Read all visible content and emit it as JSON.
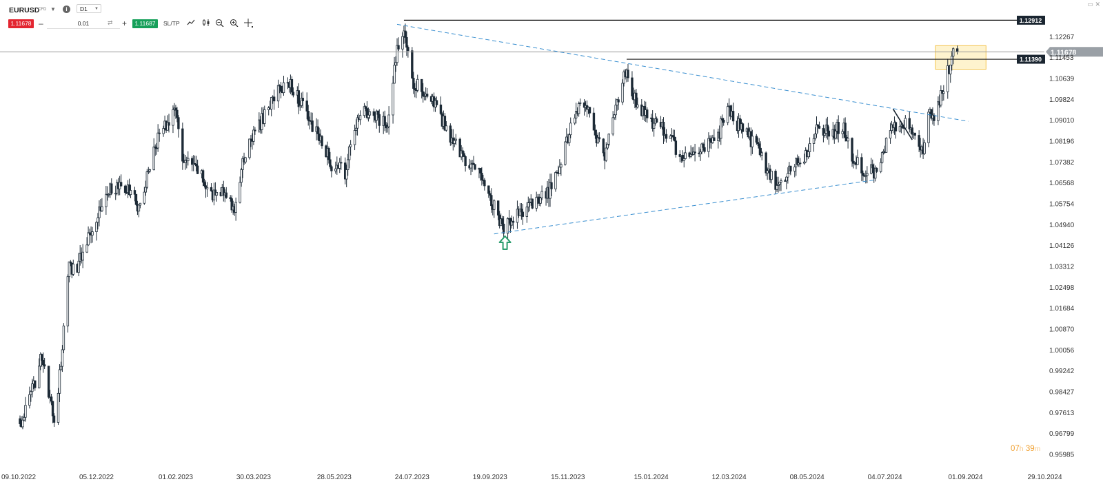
{
  "header": {
    "symbol": "EURUSD",
    "symbol_type": "CFD",
    "timeframe": "D1",
    "sell_price": "1.11678",
    "buy_price": "1.11687",
    "volume": "0.01",
    "sltp_label": "SL/TP",
    "icons": {
      "symbol_dropdown": "chevron-down-icon",
      "info": "info-icon",
      "swap": "swap-icon",
      "chart_type": "line-chart-icon",
      "indicators": "candlestick-icon",
      "zoom_out": "zoom-out-icon",
      "zoom_in": "zoom-in-icon",
      "crosshair": "crosshair-move-icon",
      "window": "window-icon",
      "close": "close-icon"
    }
  },
  "countdown": {
    "hours": "07",
    "hours_unit": "h",
    "minutes": "39",
    "minutes_unit": "m"
  },
  "chart_data": {
    "type": "candlestick",
    "symbol": "EURUSD",
    "timeframe": "D1",
    "x_tick_labels": [
      "09.10.2022",
      "05.12.2022",
      "01.02.2023",
      "30.03.2023",
      "28.05.2023",
      "24.07.2023",
      "19.09.2023",
      "15.11.2023",
      "15.01.2024",
      "12.03.2024",
      "08.05.2024",
      "04.07.2024",
      "01.09.2024",
      "29.10.2024"
    ],
    "y_tick_labels": [
      "1.12267",
      "1.11453",
      "1.10639",
      "1.09824",
      "1.09010",
      "1.08196",
      "1.07382",
      "1.06568",
      "1.05754",
      "1.04940",
      "1.04126",
      "1.03312",
      "1.02498",
      "1.01684",
      "1.00870",
      "1.00056",
      "0.99242",
      "0.98427",
      "0.97613",
      "0.96799",
      "0.95985"
    ],
    "ylim": [
      0.9585,
      1.1327
    ],
    "current_price": 1.11678,
    "current_price_label": "1.11678",
    "horizontal_levels": [
      {
        "value": 1.12912,
        "label": "1.12912",
        "from": "18.07.2023"
      },
      {
        "value": 1.1139,
        "label": "1.11390",
        "from": "28.12.2023"
      }
    ],
    "trendlines": [
      {
        "style": "dashed",
        "color": "#3a8fd0",
        "points": [
          [
            "13.07.2023",
            1.1275
          ],
          [
            "03.09.2024",
            1.0897
          ]
        ]
      },
      {
        "style": "dashed",
        "color": "#3a8fd0",
        "points": [
          [
            "22.09.2023",
            1.0458
          ],
          [
            "26.06.2024",
            1.0668
          ]
        ]
      },
      {
        "style": "solid",
        "color": "#1a2530",
        "points": [
          [
            "10.07.2024",
            1.0945
          ],
          [
            "24.07.2024",
            1.0825
          ]
        ]
      }
    ],
    "highlight_zone": {
      "from": "10.08.2024",
      "to": "16.09.2024",
      "low": 1.11,
      "high": 1.1192,
      "color": "#fde9a6"
    },
    "annotations": [
      {
        "type": "up-arrow",
        "date": "30.09.2023",
        "value": 1.0425,
        "color": "#2a9d6e"
      }
    ],
    "candles": [
      [
        "10.10.2022",
        0.9708
      ],
      [
        "20.10.2022",
        0.986
      ],
      [
        "25.10.2022",
        1.0
      ],
      [
        "01.11.2022",
        0.98
      ],
      [
        "05.11.2022",
        0.972
      ],
      [
        "15.11.2022",
        1.033
      ],
      [
        "20.11.2022",
        1.032
      ],
      [
        "01.12.2022",
        1.048
      ],
      [
        "05.12.2022",
        1.053
      ],
      [
        "15.12.2022",
        1.064
      ],
      [
        "28.12.2022",
        1.063
      ],
      [
        "06.01.2023",
        1.056
      ],
      [
        "16.01.2023",
        1.08
      ],
      [
        "26.01.2023",
        1.09
      ],
      [
        "02.02.2023",
        1.093
      ],
      [
        "06.02.2023",
        1.074
      ],
      [
        "18.02.2023",
        1.07
      ],
      [
        "28.02.2023",
        1.06
      ],
      [
        "09.03.2023",
        1.064
      ],
      [
        "15.03.2023",
        1.054
      ],
      [
        "25.03.2023",
        1.08
      ],
      [
        "05.04.2023",
        1.09
      ],
      [
        "14.04.2023",
        1.1
      ],
      [
        "26.04.2023",
        1.105
      ],
      [
        "05.05.2023",
        1.095
      ],
      [
        "15.05.2023",
        1.085
      ],
      [
        "26.05.2023",
        1.073
      ],
      [
        "05.06.2023",
        1.07
      ],
      [
        "15.06.2023",
        1.093
      ],
      [
        "25.06.2023",
        1.092
      ],
      [
        "06.07.2023",
        1.088
      ],
      [
        "13.07.2023",
        1.118
      ],
      [
        "18.07.2023",
        1.127
      ],
      [
        "25.07.2023",
        1.105
      ],
      [
        "05.08.2023",
        1.1
      ],
      [
        "15.08.2023",
        1.09
      ],
      [
        "25.08.2023",
        1.08
      ],
      [
        "05.09.2023",
        1.072
      ],
      [
        "15.09.2023",
        1.067
      ],
      [
        "28.09.2023",
        1.048
      ],
      [
        "04.10.2023",
        1.05
      ],
      [
        "14.10.2023",
        1.055
      ],
      [
        "24.10.2023",
        1.058
      ],
      [
        "01.11.2023",
        1.062
      ],
      [
        "08.11.2023",
        1.07
      ],
      [
        "18.11.2023",
        1.09
      ],
      [
        "28.11.2023",
        1.098
      ],
      [
        "05.12.2023",
        1.085
      ],
      [
        "12.12.2023",
        1.076
      ],
      [
        "20.12.2023",
        1.095
      ],
      [
        "28.12.2023",
        1.11
      ],
      [
        "05.01.2024",
        1.095
      ],
      [
        "18.01.2024",
        1.088
      ],
      [
        "28.01.2024",
        1.085
      ],
      [
        "05.02.2024",
        1.075
      ],
      [
        "15.02.2024",
        1.076
      ],
      [
        "25.02.2024",
        1.081
      ],
      [
        "05.03.2024",
        1.086
      ],
      [
        "10.03.2024",
        1.095
      ],
      [
        "20.03.2024",
        1.087
      ],
      [
        "01.04.2024",
        1.08
      ],
      [
        "15.04.2024",
        1.064
      ],
      [
        "25.04.2024",
        1.07
      ],
      [
        "06.05.2024",
        1.076
      ],
      [
        "15.05.2024",
        1.086
      ],
      [
        "25.05.2024",
        1.085
      ],
      [
        "04.06.2024",
        1.088
      ],
      [
        "10.06.2024",
        1.076
      ],
      [
        "20.06.2024",
        1.07
      ],
      [
        "26.06.2024",
        1.07
      ],
      [
        "04.07.2024",
        1.08
      ],
      [
        "10.07.2024",
        1.088
      ],
      [
        "18.07.2024",
        1.09
      ],
      [
        "24.07.2024",
        1.084
      ],
      [
        "01.08.2024",
        1.08
      ],
      [
        "05.08.2024",
        1.092
      ],
      [
        "10.08.2024",
        1.093
      ],
      [
        "15.08.2024",
        1.102
      ],
      [
        "20.08.2024",
        1.11
      ],
      [
        "24.08.2024",
        1.118
      ],
      [
        "26.08.2024",
        1.1168
      ]
    ]
  }
}
